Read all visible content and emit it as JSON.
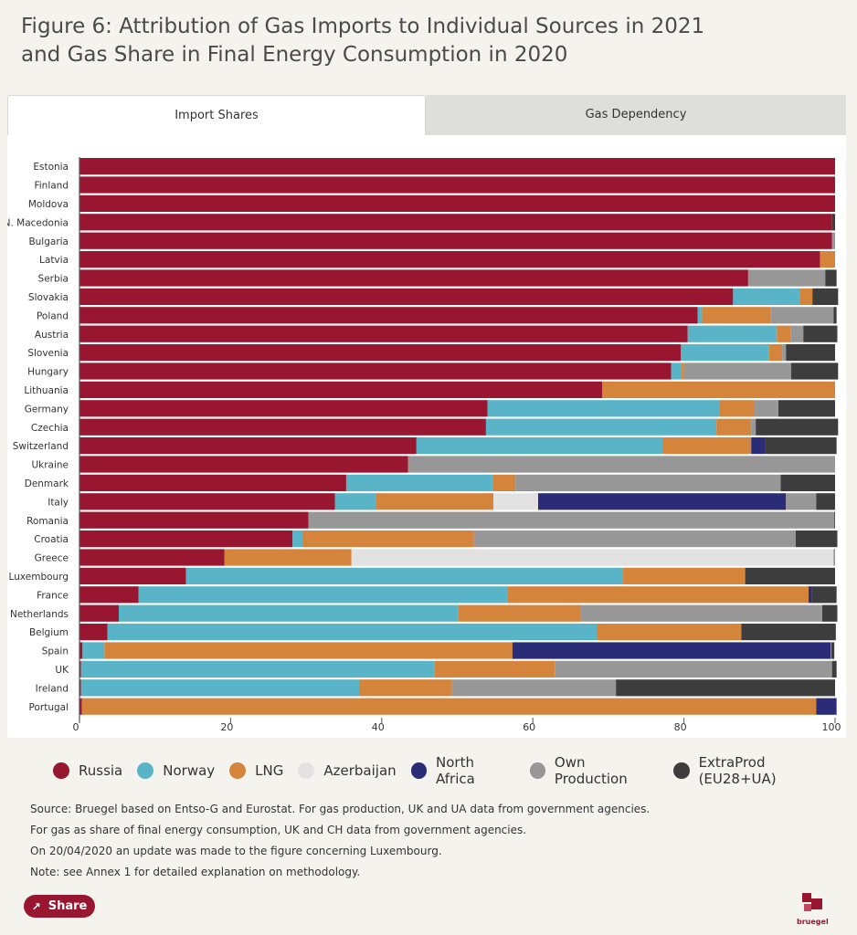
{
  "title_line1": "Figure 6: Attribution of Gas Imports to Individual Sources in 2021",
  "title_line2": "and Gas Share in Final Energy Consumption in 2020",
  "tabs": [
    {
      "label": "Import Shares",
      "active": true
    },
    {
      "label": "Gas Dependency",
      "active": false
    }
  ],
  "legend": [
    {
      "label": "Russia",
      "color": "#98162f"
    },
    {
      "label": "Norway",
      "color": "#5ab4c8"
    },
    {
      "label": "LNG",
      "color": "#d5843c"
    },
    {
      "label": "Azerbaijan",
      "color": "#e2e2e2"
    },
    {
      "label": "North Africa",
      "color": "#2a2c78"
    },
    {
      "label": "Own Production",
      "color": "#979797"
    },
    {
      "label": "ExtraProd (EU28+UA)",
      "color": "#3d3d3d"
    }
  ],
  "notes": [
    "Source: Bruegel based on Entso-G and Eurostat. For gas production, UK and UA data from government agencies.",
    "For gas as share of final energy consumption, UK and CH data from government agencies.",
    "On 20/04/2020 an update was made to the figure concerning Luxembourg.",
    "Note: see Annex 1 for detailed explanation on methodology."
  ],
  "share_label": "Share",
  "logo_text": "bruegel",
  "chart_data": {
    "type": "bar",
    "orientation": "horizontal",
    "stacked": true,
    "xlim": [
      0,
      100
    ],
    "xticks": [
      0,
      20,
      40,
      60,
      80,
      100
    ],
    "categories": [
      "Estonia",
      "Finland",
      "Moldova",
      "N. Macedonia",
      "Bulgaria",
      "Latvia",
      "Serbia",
      "Slovakia",
      "Poland",
      "Austria",
      "Slovenia",
      "Hungary",
      "Lithuania",
      "Germany",
      "Czechia",
      "Switzerland",
      "Ukraine",
      "Denmark",
      "Italy",
      "Romania",
      "Croatia",
      "Greece",
      "Luxembourg",
      "France",
      "Netherlands",
      "Belgium",
      "Spain",
      "UK",
      "Ireland",
      "Portugal"
    ],
    "series": [
      {
        "name": "Russia",
        "values": [
          100,
          100,
          100,
          99.6,
          99.6,
          98,
          88.5,
          86.5,
          81.8,
          80.5,
          79.6,
          78.3,
          69.2,
          54,
          53.8,
          44.6,
          43.5,
          35.3,
          33.8,
          30.3,
          28.2,
          19.2,
          14.1,
          7.8,
          5.2,
          3.7,
          0.4,
          0.2,
          0.2,
          0.3
        ]
      },
      {
        "name": "Norway",
        "values": [
          0,
          0,
          0,
          0,
          0,
          0,
          0,
          8.9,
          0.6,
          11.8,
          11.6,
          1.4,
          0,
          30.7,
          30.5,
          32.6,
          0,
          19.4,
          5.5,
          0,
          1.3,
          0,
          57.8,
          48.8,
          44.9,
          64.8,
          2.9,
          46.8,
          36.8,
          0
        ]
      },
      {
        "name": "LNG",
        "values": [
          0,
          0,
          0,
          0,
          0,
          2,
          0,
          1.6,
          9.1,
          1.8,
          1.8,
          0.3,
          30.8,
          4.6,
          4.6,
          11.7,
          0,
          3,
          15.5,
          0,
          22.7,
          16.8,
          16.2,
          39.9,
          16.3,
          19.1,
          54,
          15.9,
          12.3,
          97.2
        ]
      },
      {
        "name": "Azerbaijan",
        "values": [
          0,
          0,
          0,
          0,
          0,
          0,
          0,
          0,
          0,
          0,
          0,
          0,
          0,
          0,
          0,
          0,
          0,
          0,
          5.9,
          0,
          0,
          63.8,
          0,
          0,
          0,
          0,
          0,
          0,
          0,
          0
        ]
      },
      {
        "name": "North Africa",
        "values": [
          0,
          0,
          0,
          0,
          0,
          0,
          0,
          0,
          0,
          0,
          0,
          0,
          0,
          0,
          0,
          1.9,
          0,
          0,
          32.8,
          0,
          0,
          0,
          0,
          0.4,
          0,
          0,
          42.1,
          0,
          0,
          2.7
        ]
      },
      {
        "name": "Own Production",
        "values": [
          0,
          0,
          0,
          0,
          0.4,
          0,
          10.2,
          0,
          8.3,
          1.7,
          0.5,
          14.2,
          0,
          3.2,
          0.6,
          0,
          56.5,
          35.1,
          4,
          69.6,
          42.6,
          0.2,
          0,
          0,
          31.9,
          0,
          0.1,
          36.7,
          21.7,
          0
        ]
      },
      {
        "name": "ExtraProd (EU28+UA)",
        "values": [
          0,
          0,
          0,
          0.4,
          0,
          0,
          1.5,
          3.4,
          0.4,
          4.5,
          6.5,
          6.2,
          0,
          7.5,
          10.9,
          9.4,
          0,
          7.2,
          2.5,
          0.1,
          5.5,
          0,
          11.9,
          3.3,
          2,
          12.5,
          0.4,
          0.6,
          29,
          0
        ]
      }
    ]
  }
}
